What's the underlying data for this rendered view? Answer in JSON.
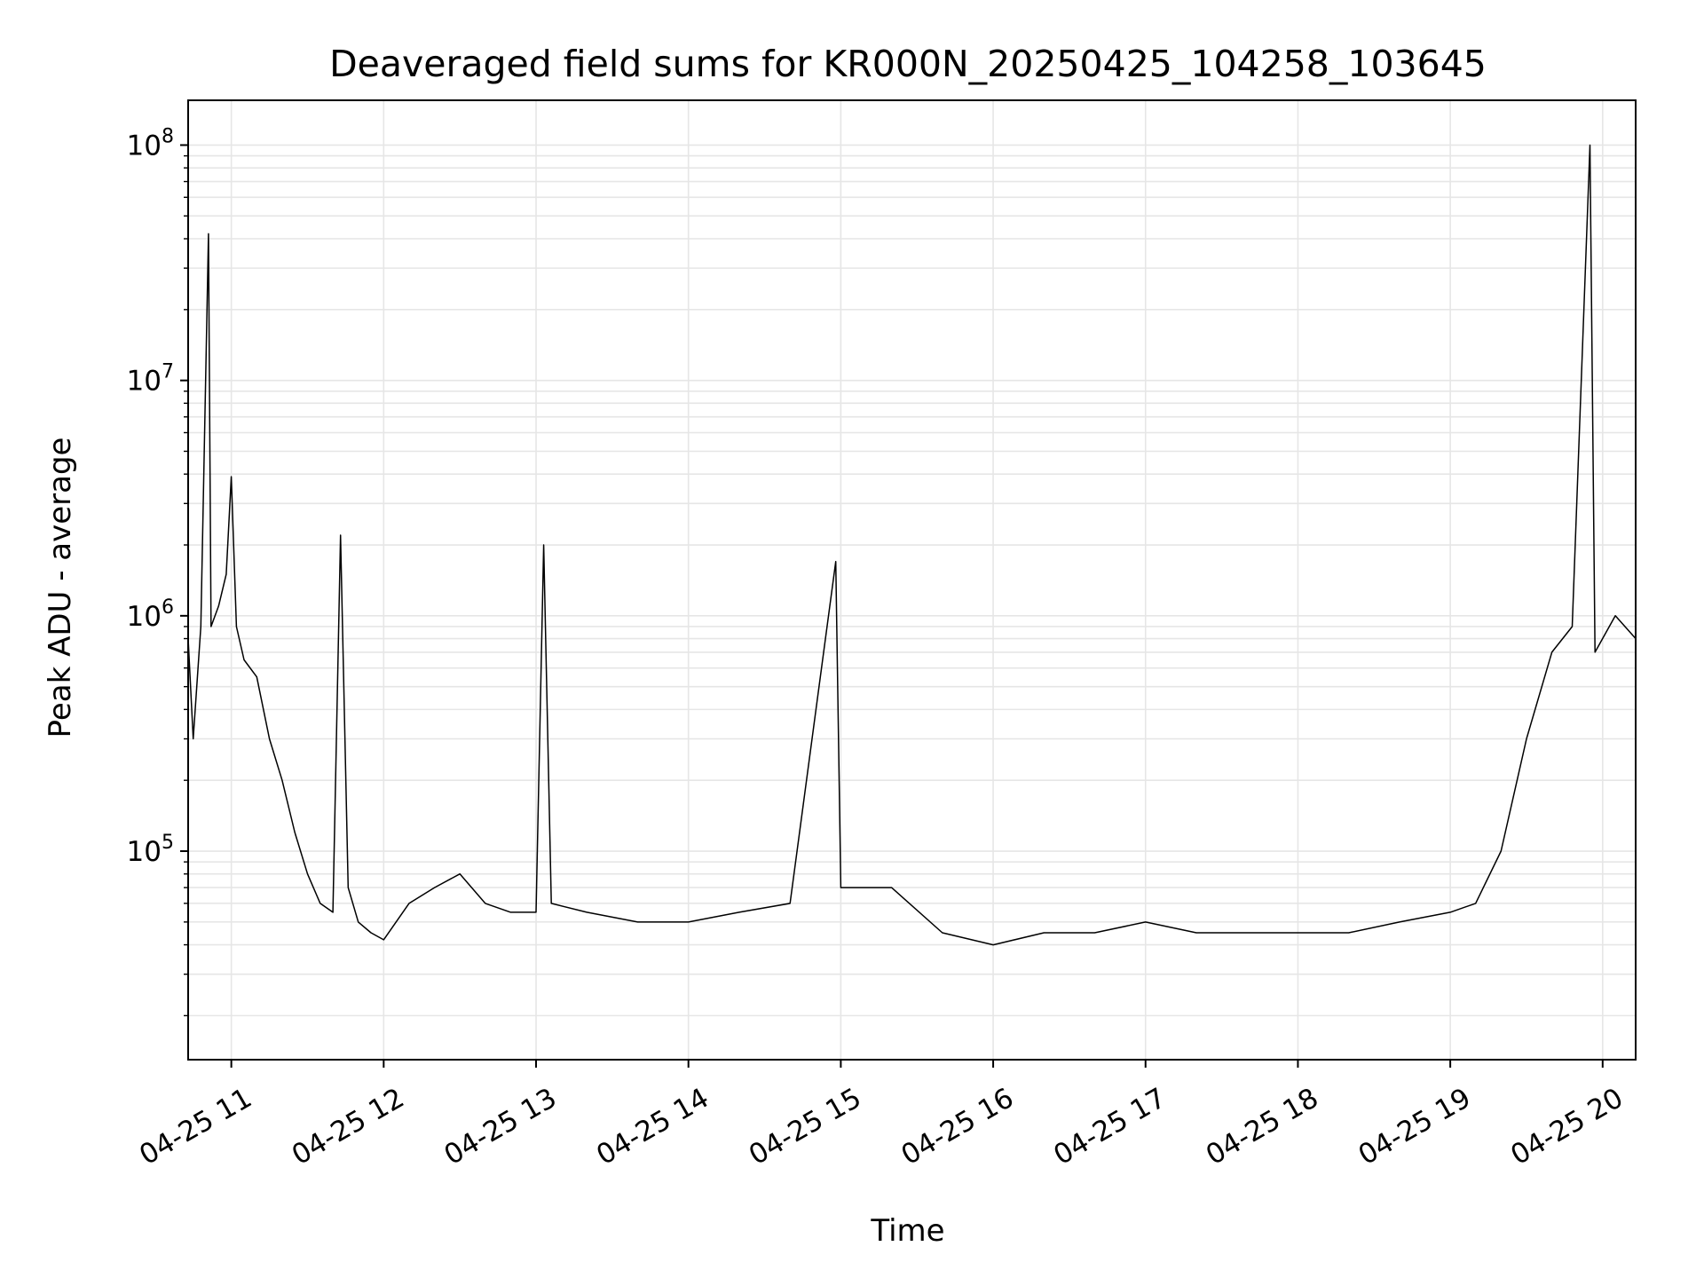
{
  "chart_data": {
    "type": "line",
    "title": "Deaveraged field sums for KR000N_20250425_104258_103645",
    "xlabel": "Time",
    "ylabel": "Peak ADU - average",
    "y_scale": "log",
    "ylim": [
      13000,
      155000000
    ],
    "xlim": [
      "2025-04-25 10:43",
      "2025-04-25 20:13"
    ],
    "grid": true,
    "line_color": "#000000",
    "grid_color": "#e6e6e6",
    "x_ticks": [
      {
        "value": "2025-04-25 11:00",
        "label": "04-25 11"
      },
      {
        "value": "2025-04-25 12:00",
        "label": "04-25 12"
      },
      {
        "value": "2025-04-25 13:00",
        "label": "04-25 13"
      },
      {
        "value": "2025-04-25 14:00",
        "label": "04-25 14"
      },
      {
        "value": "2025-04-25 15:00",
        "label": "04-25 15"
      },
      {
        "value": "2025-04-25 16:00",
        "label": "04-25 16"
      },
      {
        "value": "2025-04-25 17:00",
        "label": "04-25 17"
      },
      {
        "value": "2025-04-25 18:00",
        "label": "04-25 18"
      },
      {
        "value": "2025-04-25 19:00",
        "label": "04-25 19"
      },
      {
        "value": "2025-04-25 20:00",
        "label": "04-25 20"
      }
    ],
    "y_ticks": [
      {
        "value": 100000,
        "base": "10",
        "exp": "5"
      },
      {
        "value": 1000000,
        "base": "10",
        "exp": "6"
      },
      {
        "value": 10000000,
        "base": "10",
        "exp": "7"
      },
      {
        "value": 100000000,
        "base": "10",
        "exp": "8"
      }
    ],
    "series": [
      {
        "points": [
          [
            "2025-04-25 10:43",
            800000
          ],
          [
            "2025-04-25 10:45",
            300000
          ],
          [
            "2025-04-25 10:48",
            900000
          ],
          [
            "2025-04-25 10:51",
            42000000
          ],
          [
            "2025-04-25 10:52",
            900000
          ],
          [
            "2025-04-25 10:55",
            1100000
          ],
          [
            "2025-04-25 10:58",
            1500000
          ],
          [
            "2025-04-25 11:00",
            3900000
          ],
          [
            "2025-04-25 11:02",
            900000
          ],
          [
            "2025-04-25 11:05",
            650000
          ],
          [
            "2025-04-25 11:10",
            550000
          ],
          [
            "2025-04-25 11:15",
            300000
          ],
          [
            "2025-04-25 11:20",
            200000
          ],
          [
            "2025-04-25 11:25",
            120000
          ],
          [
            "2025-04-25 11:30",
            80000
          ],
          [
            "2025-04-25 11:35",
            60000
          ],
          [
            "2025-04-25 11:40",
            55000
          ],
          [
            "2025-04-25 11:43",
            2200000
          ],
          [
            "2025-04-25 11:46",
            70000
          ],
          [
            "2025-04-25 11:50",
            50000
          ],
          [
            "2025-04-25 11:55",
            45000
          ],
          [
            "2025-04-25 12:00",
            42000
          ],
          [
            "2025-04-25 12:10",
            60000
          ],
          [
            "2025-04-25 12:20",
            70000
          ],
          [
            "2025-04-25 12:30",
            80000
          ],
          [
            "2025-04-25 12:40",
            60000
          ],
          [
            "2025-04-25 12:50",
            55000
          ],
          [
            "2025-04-25 13:00",
            55000
          ],
          [
            "2025-04-25 13:03",
            2000000
          ],
          [
            "2025-04-25 13:06",
            60000
          ],
          [
            "2025-04-25 13:20",
            55000
          ],
          [
            "2025-04-25 13:40",
            50000
          ],
          [
            "2025-04-25 14:00",
            50000
          ],
          [
            "2025-04-25 14:20",
            55000
          ],
          [
            "2025-04-25 14:40",
            60000
          ],
          [
            "2025-04-25 14:58",
            1700000
          ],
          [
            "2025-04-25 15:00",
            70000
          ],
          [
            "2025-04-25 15:20",
            70000
          ],
          [
            "2025-04-25 15:40",
            45000
          ],
          [
            "2025-04-25 16:00",
            40000
          ],
          [
            "2025-04-25 16:20",
            45000
          ],
          [
            "2025-04-25 16:40",
            45000
          ],
          [
            "2025-04-25 17:00",
            50000
          ],
          [
            "2025-04-25 17:20",
            45000
          ],
          [
            "2025-04-25 17:40",
            45000
          ],
          [
            "2025-04-25 18:00",
            45000
          ],
          [
            "2025-04-25 18:20",
            45000
          ],
          [
            "2025-04-25 18:40",
            50000
          ],
          [
            "2025-04-25 19:00",
            55000
          ],
          [
            "2025-04-25 19:10",
            60000
          ],
          [
            "2025-04-25 19:20",
            100000
          ],
          [
            "2025-04-25 19:30",
            300000
          ],
          [
            "2025-04-25 19:40",
            700000
          ],
          [
            "2025-04-25 19:48",
            900000
          ],
          [
            "2025-04-25 19:55",
            100000000
          ],
          [
            "2025-04-25 19:57",
            700000
          ],
          [
            "2025-04-25 20:05",
            1000000
          ],
          [
            "2025-04-25 20:13",
            800000
          ]
        ]
      }
    ]
  }
}
